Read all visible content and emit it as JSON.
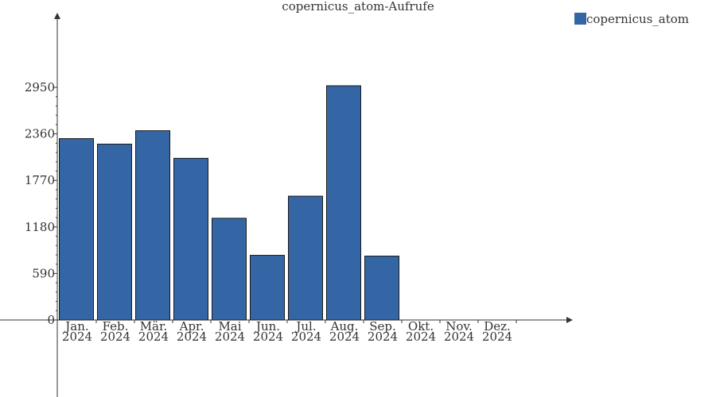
{
  "chart_data": {
    "type": "bar",
    "title": "copernicus_atom-Aufrufe",
    "categories": [
      [
        "Jan.",
        "2024"
      ],
      [
        "Feb.",
        "2024"
      ],
      [
        "Mär.",
        "2024"
      ],
      [
        "Apr.",
        "2024"
      ],
      [
        "Mai",
        "2024"
      ],
      [
        "Jun.",
        "2024"
      ],
      [
        "Jul.",
        "2024"
      ],
      [
        "Aug.",
        "2024"
      ],
      [
        "Sep.",
        "2024"
      ],
      [
        "Okt.",
        "2024"
      ],
      [
        "Nov.",
        "2024"
      ],
      [
        "Dez.",
        "2024"
      ]
    ],
    "series": [
      {
        "name": "copernicus_atom",
        "color": "#3465a4",
        "values": [
          2300,
          2230,
          2400,
          2050,
          1290,
          820,
          1570,
          2970,
          810,
          0,
          0,
          0
        ]
      }
    ],
    "yticks": [
      "0",
      "590",
      "1180",
      "1770",
      "2360",
      "2950"
    ],
    "ylim": [
      0,
      2950
    ],
    "legend_position": "top-right",
    "grid": false
  }
}
